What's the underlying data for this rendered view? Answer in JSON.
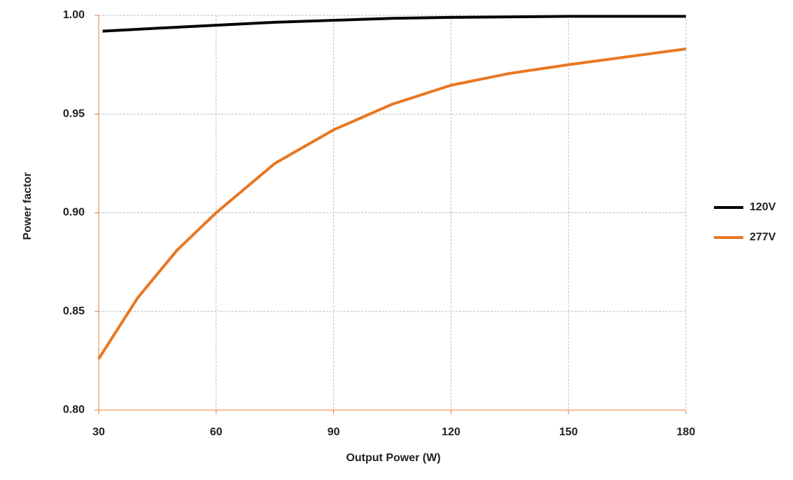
{
  "chart_data": {
    "type": "line",
    "xlabel": "Output Power (W)",
    "ylabel": "Power factor",
    "xlim": [
      30,
      180
    ],
    "xticks": [
      30,
      60,
      90,
      120,
      150,
      180
    ],
    "ylim": [
      0.8,
      1.0
    ],
    "yticks": [
      {
        "value": 0.8,
        "label": "0.80"
      },
      0.85,
      {
        "value": 0.9,
        "label": "0.90"
      },
      0.95,
      {
        "value": 1.0,
        "label": "1.00"
      }
    ],
    "grid": true,
    "legend": "right",
    "axis_color": "#ed7d31",
    "series": [
      {
        "name": "120V",
        "color": "#000000",
        "x": [
          31,
          45,
          60,
          75,
          90,
          105,
          120,
          150,
          180
        ],
        "values": [
          0.992,
          0.9935,
          0.995,
          0.9965,
          0.9975,
          0.9985,
          0.999,
          0.9995,
          0.9995
        ]
      },
      {
        "name": "277V",
        "color": "#e87722",
        "x": [
          30,
          40,
          50,
          60,
          75,
          90,
          105,
          120,
          135,
          150,
          180
        ],
        "values": [
          0.826,
          0.857,
          0.881,
          0.9,
          0.925,
          0.942,
          0.955,
          0.9646,
          0.9706,
          0.975,
          0.983
        ]
      }
    ]
  }
}
